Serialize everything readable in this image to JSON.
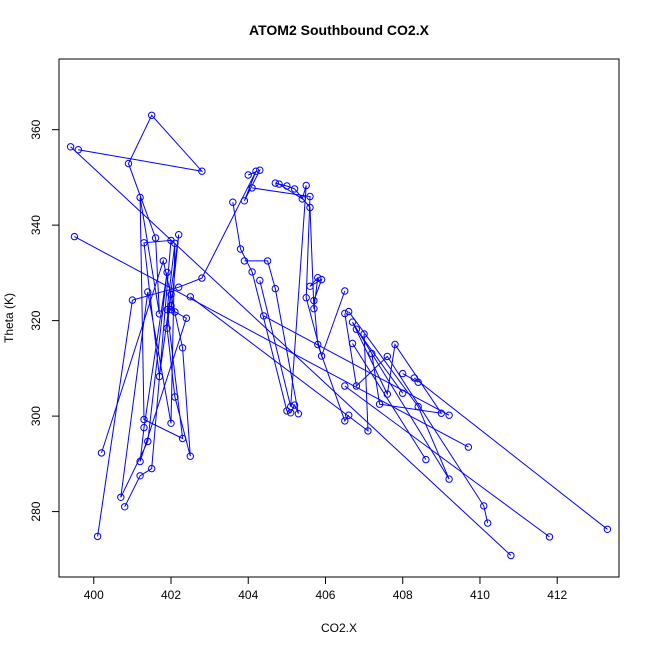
{
  "chart_data": {
    "type": "line",
    "title": "ATOM2 Southbound CO2.X",
    "xlabel": "CO2.X",
    "ylabel": "Theta (K)",
    "xlim": [
      399.1,
      413.6
    ],
    "ylim": [
      266.3,
      374.8
    ],
    "xticks": [
      400,
      402,
      404,
      406,
      408,
      410,
      412
    ],
    "yticks": [
      280,
      300,
      320,
      340,
      360
    ],
    "grid": false,
    "series_color": "#0000ff",
    "markers": "open-circle",
    "series": [
      {
        "x": [
          399.6,
          402.8,
          401.5,
          400.9,
          401.6,
          401.7,
          401.2,
          401.3,
          402.3,
          401.9,
          402.1,
          402.0,
          401.4,
          400.7,
          401.4,
          401.9,
          401.3,
          401.2,
          402.4,
          402.0,
          402.2,
          401.7,
          401.3,
          402.0,
          401.5,
          401.2,
          400.8
        ],
        "y": [
          355.8,
          351.3,
          363.0,
          352.9,
          337.3,
          321.4,
          345.8,
          299.3,
          295.3,
          322.3,
          336.2,
          298.5,
          326.0,
          283.0,
          294.7,
          330.1,
          297.6,
          290.5,
          320.5,
          322.3,
          338.0,
          308.3,
          336.3,
          336.8,
          289.0,
          287.5,
          281.0
        ]
      },
      {
        "x": [
          399.4,
          410.8
        ],
        "y": [
          356.4,
          270.8
        ]
      },
      {
        "x": [
          399.5,
          409.7
        ],
        "y": [
          337.6,
          293.5
        ]
      },
      {
        "x": [
          400.2,
          401.8,
          402.3,
          402.5,
          402.1,
          401.9,
          402.0,
          402.1,
          402.0
        ],
        "y": [
          292.3,
          332.5,
          314.3,
          291.6,
          304.0,
          318.4,
          325.5,
          321.8,
          323.1
        ]
      },
      {
        "x": [
          400.1,
          401.0,
          402.2,
          402.8,
          404.2,
          403.9,
          404.3,
          404.0
        ],
        "y": [
          274.8,
          324.3,
          327.0,
          328.9,
          351.3,
          345.1,
          351.5,
          350.5
        ]
      },
      {
        "x": [
          403.6,
          403.8,
          404.1,
          405.0,
          405.1,
          405.2,
          405.3,
          404.7,
          404.5,
          403.9
        ],
        "y": [
          344.8,
          335.0,
          330.2,
          301.1,
          300.7,
          302.3,
          300.5,
          326.7,
          332.5,
          332.5
        ]
      },
      {
        "x": [
          404.3,
          405.1,
          405.5,
          405.4,
          404.8,
          404.7,
          405.0,
          405.2,
          405.6,
          405.7,
          405.8,
          405.6,
          405.9,
          405.7,
          405.8,
          406.5,
          406.6
        ],
        "y": [
          328.4,
          302.0,
          348.3,
          345.5,
          348.6,
          348.8,
          348.2,
          347.6,
          343.7,
          322.5,
          329.0,
          327.2,
          328.6,
          324.2,
          315.0,
          299.0,
          300.2
        ]
      },
      {
        "x": [
          404.1,
          405.6,
          405.5,
          405.9,
          406.5
        ],
        "y": [
          347.8,
          346.0,
          324.8,
          312.6,
          326.2
        ]
      },
      {
        "x": [
          402.5,
          407.1,
          407.0
        ],
        "y": [
          325.0,
          296.9,
          317.2
        ]
      },
      {
        "x": [
          406.8,
          408.0
        ],
        "y": [
          318.2,
          304.8
        ]
      },
      {
        "x": [
          406.6,
          408.4,
          409.2,
          406.7,
          407.6,
          407.8,
          409.0,
          407.4,
          407.2
        ],
        "y": [
          321.9,
          302.0,
          286.8,
          319.7,
          304.6,
          315.0,
          300.6,
          302.5,
          313.1
        ]
      },
      {
        "x": [
          406.7,
          408.6
        ],
        "y": [
          315.2,
          290.9
        ]
      },
      {
        "x": [
          406.5,
          406.8,
          407.6,
          410.1,
          410.2
        ],
        "y": [
          321.5,
          306.3,
          312.5,
          281.2,
          277.6
        ]
      },
      {
        "x": [
          406.5,
          411.8
        ],
        "y": [
          306.3,
          274.7
        ]
      },
      {
        "x": [
          408.0,
          408.4
        ],
        "y": [
          308.9,
          307.1
        ]
      },
      {
        "x": [
          408.3,
          413.3
        ],
        "y": [
          308.0,
          276.3
        ]
      },
      {
        "x": [
          404.4,
          409.2
        ],
        "y": [
          321.0,
          300.2
        ]
      }
    ]
  }
}
